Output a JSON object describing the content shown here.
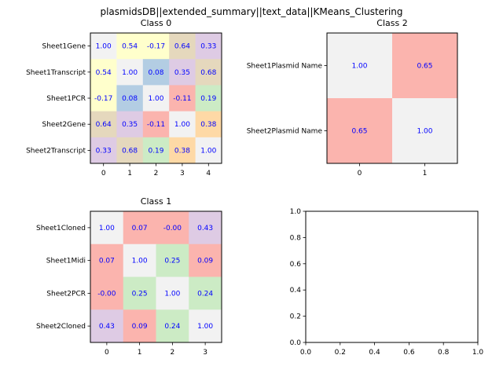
{
  "figure": {
    "title": "plasmidsDB||extended_summary||text_data||KMeans_Clustering"
  },
  "colors": {
    "palette": [
      "#b3cde3",
      "#fbb4ae",
      "#f2f2f2",
      "#ccebc5",
      "#decbe4",
      "#ffffcc",
      "#fed9a6",
      "#e5d8bd"
    ]
  },
  "chart_data": [
    {
      "type": "heatmap",
      "title": "Class 0",
      "x_ticks": [
        "0",
        "1",
        "2",
        "3",
        "4"
      ],
      "rows": [
        "Sheet1Gene",
        "Sheet1Transcript",
        "Sheet1PCR",
        "Sheet2Gene",
        "Sheet2Transcript"
      ],
      "values": [
        [
          1.0,
          0.54,
          -0.17,
          0.64,
          0.33
        ],
        [
          0.54,
          1.0,
          0.08,
          0.35,
          0.68
        ],
        [
          -0.17,
          0.08,
          1.0,
          -0.11,
          0.19
        ],
        [
          0.64,
          0.35,
          -0.11,
          1.0,
          0.38
        ],
        [
          0.33,
          0.68,
          0.19,
          0.38,
          1.0
        ]
      ],
      "labels": [
        [
          "1.00",
          "0.54",
          "-0.17",
          "0.64",
          "0.33"
        ],
        [
          "0.54",
          "1.00",
          "0.08",
          "0.35",
          "0.68"
        ],
        [
          "-0.17",
          "0.08",
          "1.00",
          "-0.11",
          "0.19"
        ],
        [
          "0.64",
          "0.35",
          "-0.11",
          "1.00",
          "0.38"
        ],
        [
          "0.33",
          "0.68",
          "0.19",
          "0.38",
          "1.00"
        ]
      ],
      "cell_colors": [
        [
          "#f2f2f2",
          "#ffffcc",
          "#ffffcc",
          "#e5d8bd",
          "#decbe4"
        ],
        [
          "#ffffcc",
          "#f2f2f2",
          "#b3cde3",
          "#decbe4",
          "#e5d8bd"
        ],
        [
          "#ffffcc",
          "#b3cde3",
          "#f2f2f2",
          "#fbb4ae",
          "#ccebc5"
        ],
        [
          "#e5d8bd",
          "#decbe4",
          "#fbb4ae",
          "#f2f2f2",
          "#fed9a6"
        ],
        [
          "#decbe4",
          "#e5d8bd",
          "#ccebc5",
          "#fed9a6",
          "#f2f2f2"
        ]
      ]
    },
    {
      "type": "heatmap",
      "title": "Class 2",
      "x_ticks": [
        "0",
        "1"
      ],
      "rows": [
        "Sheet1Plasmid Name",
        "Sheet2Plasmid Name"
      ],
      "values": [
        [
          1.0,
          0.65
        ],
        [
          0.65,
          1.0
        ]
      ],
      "labels": [
        [
          "1.00",
          "0.65"
        ],
        [
          "0.65",
          "1.00"
        ]
      ],
      "cell_colors": [
        [
          "#f2f2f2",
          "#fbb4ae"
        ],
        [
          "#fbb4ae",
          "#f2f2f2"
        ]
      ]
    },
    {
      "type": "heatmap",
      "title": "Class 1",
      "x_ticks": [
        "0",
        "1",
        "2",
        "3"
      ],
      "rows": [
        "Sheet1Cloned",
        "Sheet1Midi",
        "Sheet2PCR",
        "Sheet2Cloned"
      ],
      "values": [
        [
          1.0,
          0.07,
          -0.0,
          0.43
        ],
        [
          0.07,
          1.0,
          0.25,
          0.09
        ],
        [
          -0.0,
          0.25,
          1.0,
          0.24
        ],
        [
          0.43,
          0.09,
          0.24,
          1.0
        ]
      ],
      "labels": [
        [
          "1.00",
          "0.07",
          "-0.00",
          "0.43"
        ],
        [
          "0.07",
          "1.00",
          "0.25",
          "0.09"
        ],
        [
          "-0.00",
          "0.25",
          "1.00",
          "0.24"
        ],
        [
          "0.43",
          "0.09",
          "0.24",
          "1.00"
        ]
      ],
      "cell_colors": [
        [
          "#f2f2f2",
          "#fbb4ae",
          "#fbb4ae",
          "#decbe4"
        ],
        [
          "#fbb4ae",
          "#f2f2f2",
          "#ccebc5",
          "#fbb4ae"
        ],
        [
          "#fbb4ae",
          "#ccebc5",
          "#f2f2f2",
          "#ccebc5"
        ],
        [
          "#decbe4",
          "#fbb4ae",
          "#ccebc5",
          "#f2f2f2"
        ]
      ]
    },
    {
      "type": "scatter",
      "title": "",
      "xlim": [
        0.0,
        1.0
      ],
      "ylim": [
        0.0,
        1.0
      ],
      "x_ticks": [
        "0.0",
        "0.2",
        "0.4",
        "0.6",
        "0.8",
        "1.0"
      ],
      "y_ticks": [
        "0.0",
        "0.2",
        "0.4",
        "0.6",
        "0.8",
        "1.0"
      ],
      "series": []
    }
  ]
}
